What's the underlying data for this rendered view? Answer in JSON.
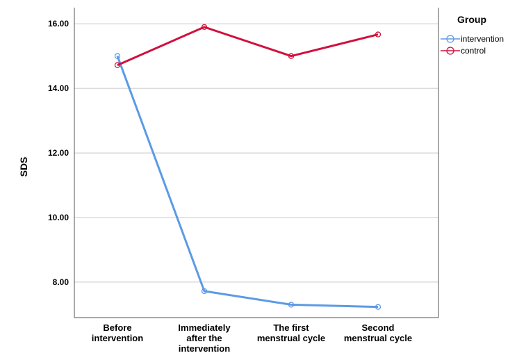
{
  "chart_data": {
    "type": "line",
    "title": "",
    "xlabel": "",
    "ylabel": "SDS",
    "categories": [
      [
        "Before",
        "intervention"
      ],
      [
        "Immediately",
        "after the",
        "intervention"
      ],
      [
        "The first",
        "menstrual cycle"
      ],
      [
        "Second",
        "menstrual cycle"
      ]
    ],
    "ylim": [
      6.9,
      16.5
    ],
    "yticks": [
      "8.00",
      "10.00",
      "12.00",
      "14.00",
      "16.00"
    ],
    "ytick_values": [
      8,
      10,
      12,
      14,
      16
    ],
    "grid": true,
    "legend": {
      "title": "Group",
      "placement": "top-right"
    },
    "series": [
      {
        "name": "intervention",
        "color": "#5b9ae6",
        "values": [
          15.0,
          7.72,
          7.3,
          7.23
        ]
      },
      {
        "name": "control",
        "color": "#d0103c",
        "values": [
          14.72,
          15.9,
          15.0,
          15.67
        ]
      }
    ]
  }
}
